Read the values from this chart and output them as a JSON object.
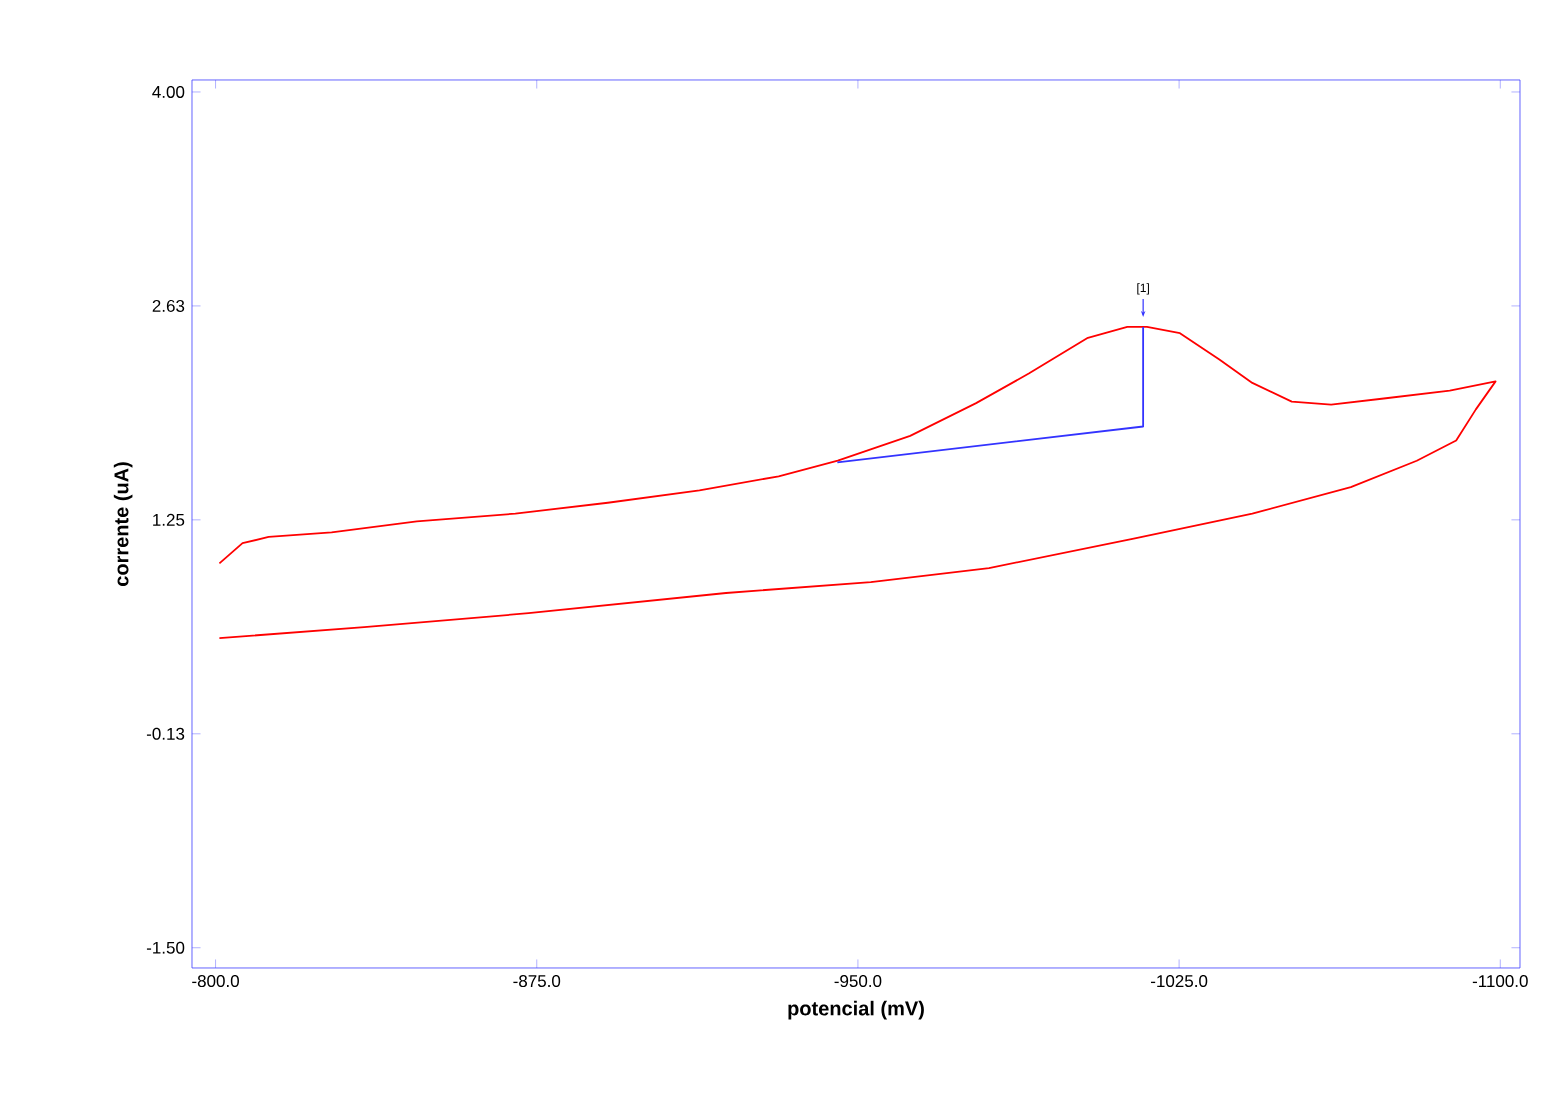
{
  "chart_data": {
    "type": "line",
    "xlabel": "potencial (mV)",
    "ylabel": "corrente (uA)",
    "xlim": [
      -794.5,
      -1104.6
    ],
    "ylim": [
      -1.63,
      4.077
    ],
    "xticks": [
      {
        "value": -800,
        "label": "-800.0"
      },
      {
        "value": -875,
        "label": "-875.0"
      },
      {
        "value": -950,
        "label": "-950.0"
      },
      {
        "value": -1025,
        "label": "-1025.0"
      },
      {
        "value": -1100,
        "label": "-1100.0"
      }
    ],
    "yticks": [
      {
        "value": -1.5,
        "label": "-1.50"
      },
      {
        "value": -0.125,
        "label": "-0.13"
      },
      {
        "value": 1.25,
        "label": "1.25"
      },
      {
        "value": 2.625,
        "label": "2.63"
      },
      {
        "value": 4,
        "label": "4.00"
      }
    ],
    "series": [
      {
        "color": "#ff0000",
        "x": [
          -800.9,
          -806.3,
          -812.4,
          -827.1,
          -847.0,
          -870.0,
          -891.6,
          -913.0,
          -931.5,
          -945.3,
          -962.2,
          -977.6,
          -989.9,
          -1003.7,
          -1012.9,
          -1017.5,
          -1025.2,
          -1034.4,
          -1042.1,
          -1051.3,
          -1060.5,
          -1072.8,
          -1088.2,
          -1098.9,
          -1094.3,
          -1089.7,
          -1080.5,
          -1065.1,
          -1042.1,
          -1014.4,
          -980.6,
          -953.0,
          -919.2,
          -873.1,
          -834.7,
          -800.9
        ],
        "values": [
          0.97,
          1.1,
          1.14,
          1.17,
          1.24,
          1.29,
          1.36,
          1.44,
          1.53,
          1.63,
          1.79,
          2.0,
          2.19,
          2.42,
          2.49,
          2.49,
          2.45,
          2.28,
          2.13,
          2.01,
          1.99,
          2.03,
          2.08,
          2.14,
          1.96,
          1.76,
          1.63,
          1.46,
          1.29,
          1.13,
          0.94,
          0.85,
          0.78,
          0.65,
          0.56,
          0.49
        ]
      },
      {
        "type": "line",
        "color": "#3333ff",
        "x": [
          -945.2,
          -1016.6,
          -1016.6
        ],
        "values": [
          1.62,
          1.85,
          2.49
        ]
      }
    ],
    "annotations": [
      {
        "text": "[1]",
        "x": -1016.6,
        "y": 2.49
      }
    ]
  }
}
